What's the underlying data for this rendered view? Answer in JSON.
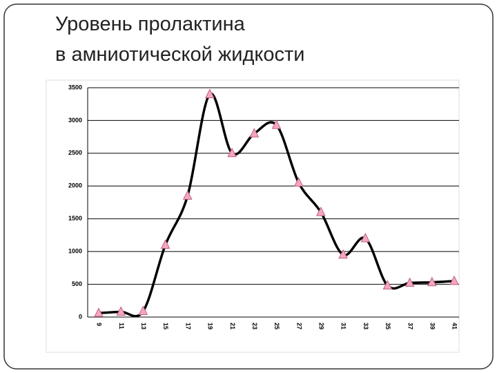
{
  "chart_data": {
    "type": "line",
    "title": [
      "Уровень пролактина",
      "в амниотической жидкости"
    ],
    "categories": [
      "9",
      "11",
      "13",
      "15",
      "17",
      "19",
      "21",
      "23",
      "25",
      "27",
      "29",
      "31",
      "33",
      "35",
      "37",
      "39",
      "41"
    ],
    "series": [
      {
        "color": "#000000",
        "marker_color": "#f4a6c0",
        "values": [
          60,
          80,
          90,
          1100,
          1850,
          3400,
          2500,
          2800,
          2930,
          2050,
          1600,
          950,
          1200,
          480,
          520,
          530,
          550
        ]
      }
    ],
    "ylim": [
      0,
      3500
    ],
    "yticks": [
      0,
      500,
      1000,
      1500,
      2000,
      2500,
      3000,
      3500
    ],
    "grid": true,
    "smooth": true
  }
}
